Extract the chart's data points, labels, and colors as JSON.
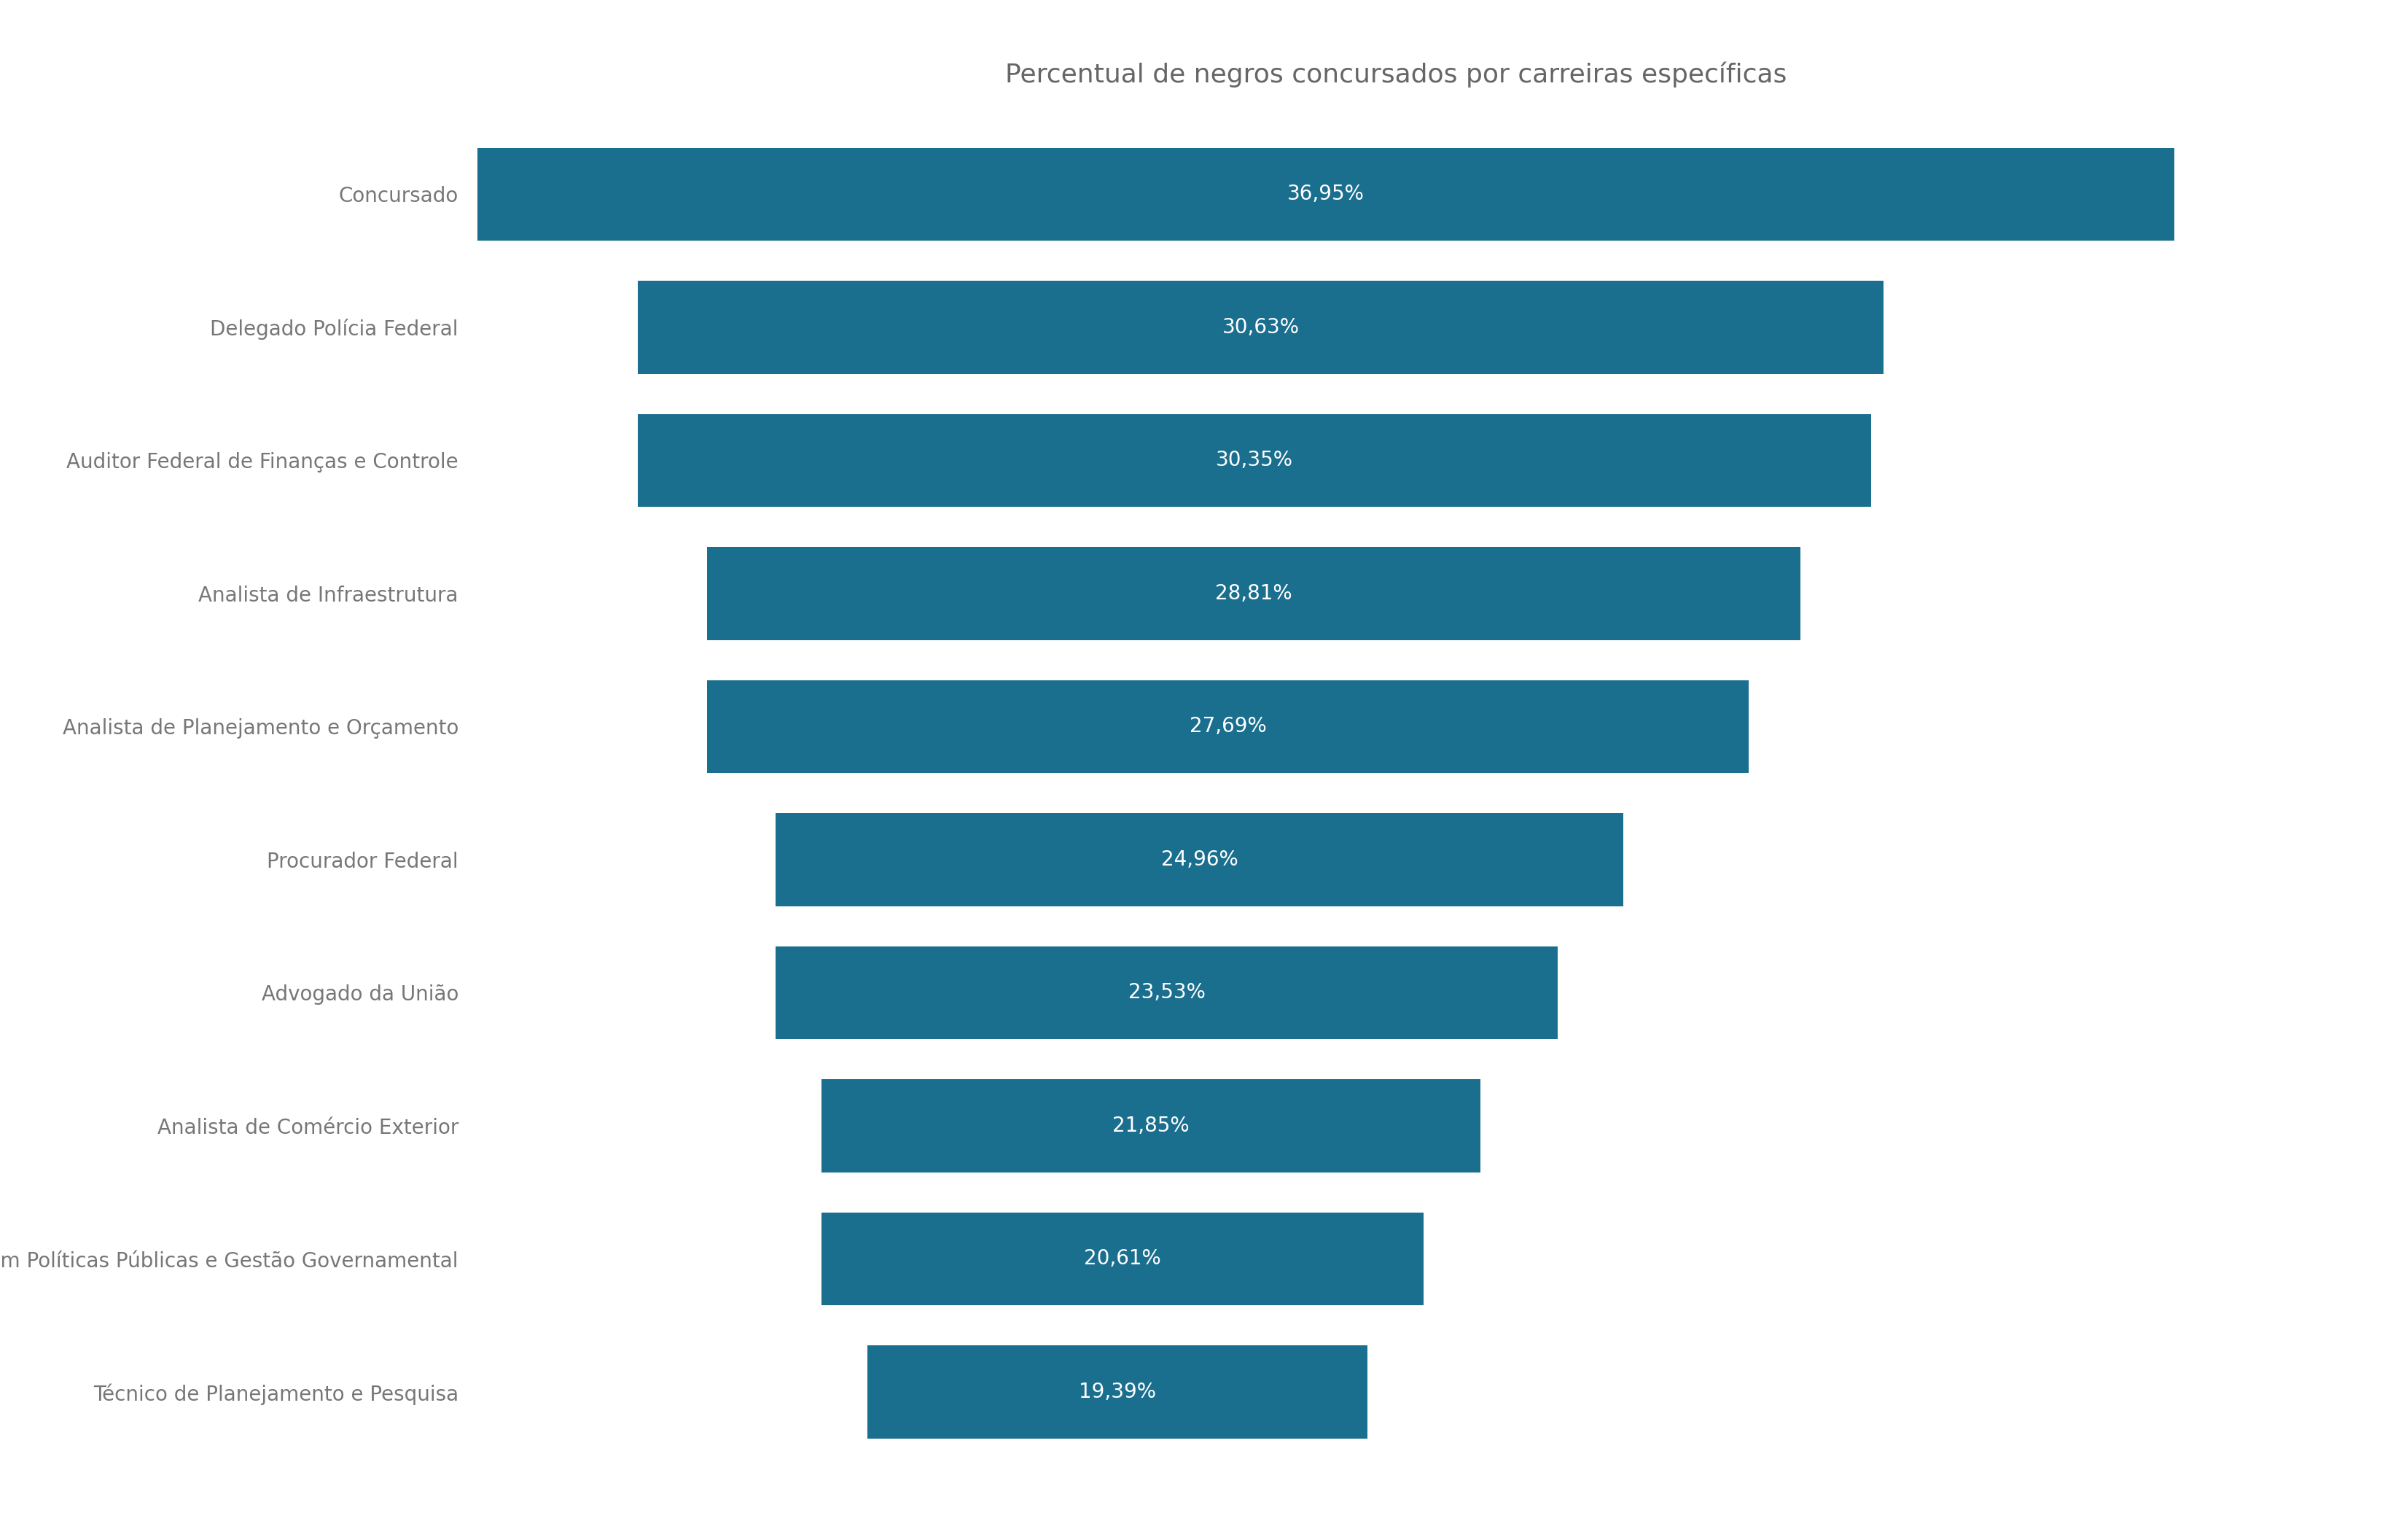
{
  "title": "Percentual de negros concursados por carreiras específicas",
  "categories": [
    "Concursado",
    "Delegado Polícia Federal",
    "Auditor Federal de Finanças e Controle",
    "Analista de Infraestrutura",
    "Analista de Planejamento e Orçamento",
    "Procurador Federal",
    "Advogado da União",
    "Analista de Comércio Exterior",
    "Especialista em Políticas Públicas e Gestão Governamental",
    "Técnico de Planejamento e Pesquisa"
  ],
  "values": [
    36.95,
    30.63,
    30.35,
    28.81,
    27.69,
    24.96,
    23.53,
    21.85,
    20.61,
    19.39
  ],
  "labels": [
    "36,95%",
    "30,63%",
    "30,35%",
    "28,81%",
    "27,69%",
    "24,96%",
    "23,53%",
    "21,85%",
    "20,61%",
    "19,39%"
  ],
  "bar_color": "#1a6e8e",
  "text_color": "#ffffff",
  "title_color": "#666666",
  "label_color": "#777777",
  "background_color": "#ffffff",
  "bar_left_offsets": [
    0.0,
    3.5,
    3.5,
    5.0,
    5.0,
    6.5,
    6.5,
    7.5,
    7.5,
    8.5
  ],
  "xlim": [
    0,
    40
  ],
  "bar_height": 0.7,
  "title_fontsize": 26,
  "label_fontsize": 20,
  "value_fontsize": 20
}
